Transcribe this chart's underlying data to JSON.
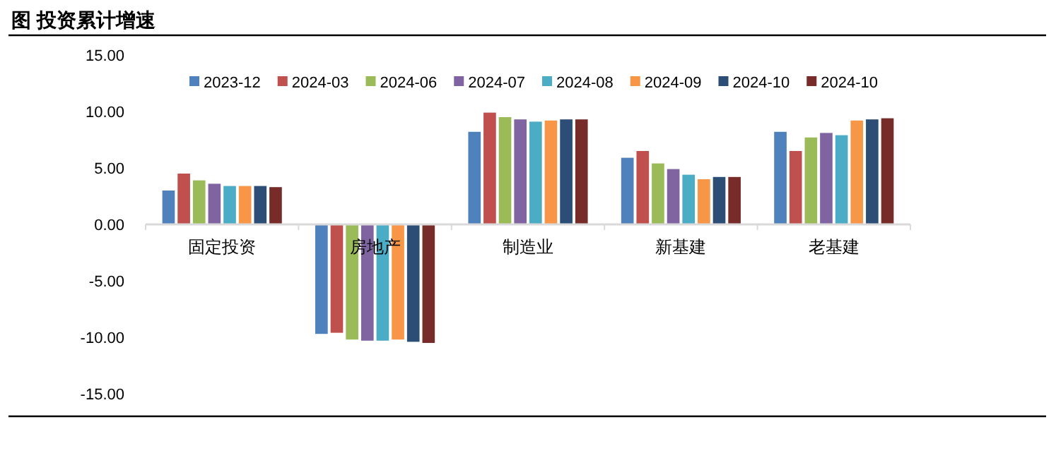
{
  "chart_data": {
    "type": "bar",
    "title": "图  投资累计增速",
    "categories": [
      "固定投资",
      "房地产",
      "制造业",
      "新基建",
      "老基建"
    ],
    "series": [
      {
        "name": "2023-12",
        "color": "#4f81bd",
        "values": [
          3.0,
          -9.7,
          8.2,
          5.9,
          8.2
        ]
      },
      {
        "name": "2024-03",
        "color": "#c0504d",
        "values": [
          4.5,
          -9.6,
          9.9,
          6.5,
          6.5
        ]
      },
      {
        "name": "2024-06",
        "color": "#9bbb59",
        "values": [
          3.9,
          -10.2,
          9.5,
          5.4,
          7.7
        ]
      },
      {
        "name": "2024-07",
        "color": "#8064a2",
        "values": [
          3.6,
          -10.3,
          9.3,
          4.9,
          8.1
        ]
      },
      {
        "name": "2024-08",
        "color": "#4bacc6",
        "values": [
          3.4,
          -10.3,
          9.1,
          4.4,
          7.9
        ]
      },
      {
        "name": "2024-09",
        "color": "#f79646",
        "values": [
          3.4,
          -10.2,
          9.2,
          4.0,
          9.2
        ]
      },
      {
        "name": "2024-10",
        "color": "#2c4d75",
        "values": [
          3.4,
          -10.4,
          9.3,
          4.2,
          9.3
        ]
      },
      {
        "name": "2024-10",
        "color": "#772c2a",
        "values": [
          3.3,
          -10.5,
          9.3,
          4.2,
          9.4
        ]
      }
    ],
    "ylim": [
      -15,
      15
    ],
    "yticks": [
      {
        "value": -15,
        "label": "-15.00"
      },
      {
        "value": -10,
        "label": "-10.00"
      },
      {
        "value": -5,
        "label": "-5.00"
      },
      {
        "value": 0,
        "label": "0.00"
      },
      {
        "value": 5,
        "label": "5.00"
      },
      {
        "value": 10,
        "label": "10.00"
      },
      {
        "value": 15,
        "label": "15.00"
      }
    ],
    "legend": "top"
  }
}
